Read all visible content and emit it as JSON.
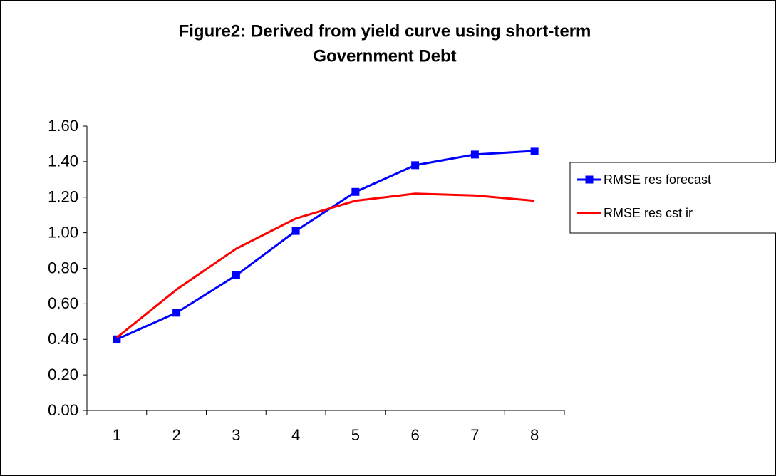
{
  "chart_data": {
    "type": "line",
    "title": [
      "Figure2: Derived from yield curve using short-term",
      "Government Debt"
    ],
    "categories": [
      "1",
      "2",
      "3",
      "4",
      "5",
      "6",
      "7",
      "8"
    ],
    "series": [
      {
        "name": "RMSE res forecast",
        "color": "#0000ff",
        "marker": "square",
        "values": [
          0.4,
          0.55,
          0.76,
          1.01,
          1.23,
          1.38,
          1.44,
          1.46
        ]
      },
      {
        "name": "RMSE res cst ir",
        "color": "#ff0000",
        "marker": "none",
        "values": [
          0.41,
          0.68,
          0.91,
          1.08,
          1.18,
          1.22,
          1.21,
          1.18
        ]
      }
    ],
    "ylim": [
      0,
      1.6
    ],
    "yticks": [
      {
        "value": 0,
        "label": "0.00"
      },
      {
        "value": 0.2,
        "label": "0.20"
      },
      {
        "value": 0.4,
        "label": "0.40"
      },
      {
        "value": 0.6,
        "label": "0.60"
      },
      {
        "value": 0.8,
        "label": "0.80"
      },
      {
        "value": 1.0,
        "label": "1.00"
      },
      {
        "value": 1.2,
        "label": "1.20"
      },
      {
        "value": 1.4,
        "label": "1.40"
      },
      {
        "value": 1.6,
        "label": "1.60"
      }
    ],
    "grid": false,
    "legend": "right"
  }
}
